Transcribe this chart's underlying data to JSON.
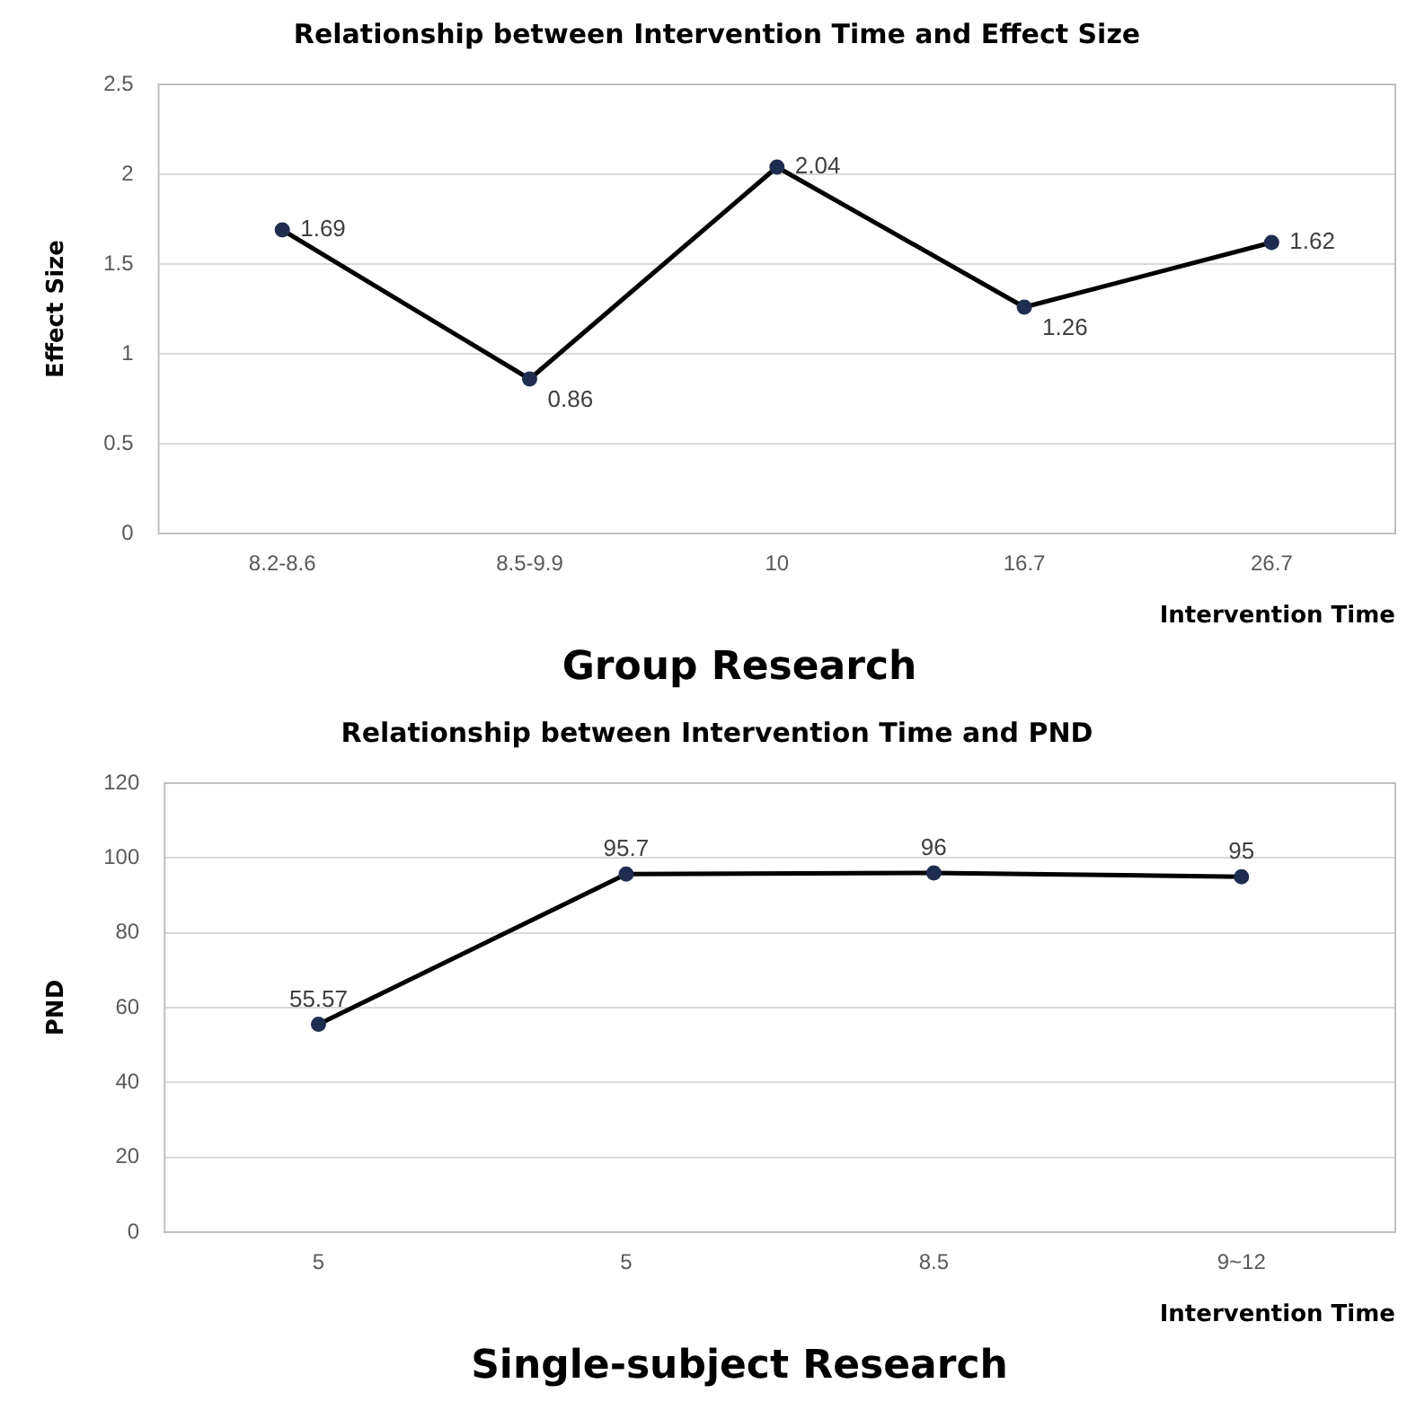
{
  "chart_data": [
    {
      "type": "line",
      "title": "Relationship between Intervention Time and Effect Size",
      "xlabel": "Intervention Time",
      "ylabel": "Effect Size",
      "categories": [
        "8.2-8.6",
        "8.5-9.9",
        "10",
        "16.7",
        "26.7"
      ],
      "series": [
        {
          "color": "#000000",
          "values": [
            1.69,
            0.86,
            2.04,
            1.26,
            1.62
          ]
        }
      ],
      "ylim": [
        0,
        2.5
      ],
      "yticks": [
        0,
        0.5,
        1,
        1.5,
        2,
        2.5
      ],
      "grid": "y",
      "legend": false,
      "marker": "circle",
      "line_style": "solid",
      "data_labels": true,
      "annotations": [
        "Group Research"
      ]
    },
    {
      "type": "line",
      "title": "Relationship between Intervention Time and PND",
      "xlabel": "Intervention Time",
      "ylabel": "PND",
      "categories": [
        "5",
        "5",
        "8.5",
        "9~12"
      ],
      "series": [
        {
          "color": "#000000",
          "values": [
            55.57,
            95.7,
            96,
            95
          ]
        }
      ],
      "ylim": [
        0,
        120
      ],
      "yticks": [
        0,
        20,
        40,
        60,
        80,
        100,
        120
      ],
      "grid": "y",
      "legend": false,
      "marker": "circle",
      "line_style": "solid",
      "data_labels": true,
      "annotations": [
        "Single-subject Research"
      ]
    }
  ]
}
